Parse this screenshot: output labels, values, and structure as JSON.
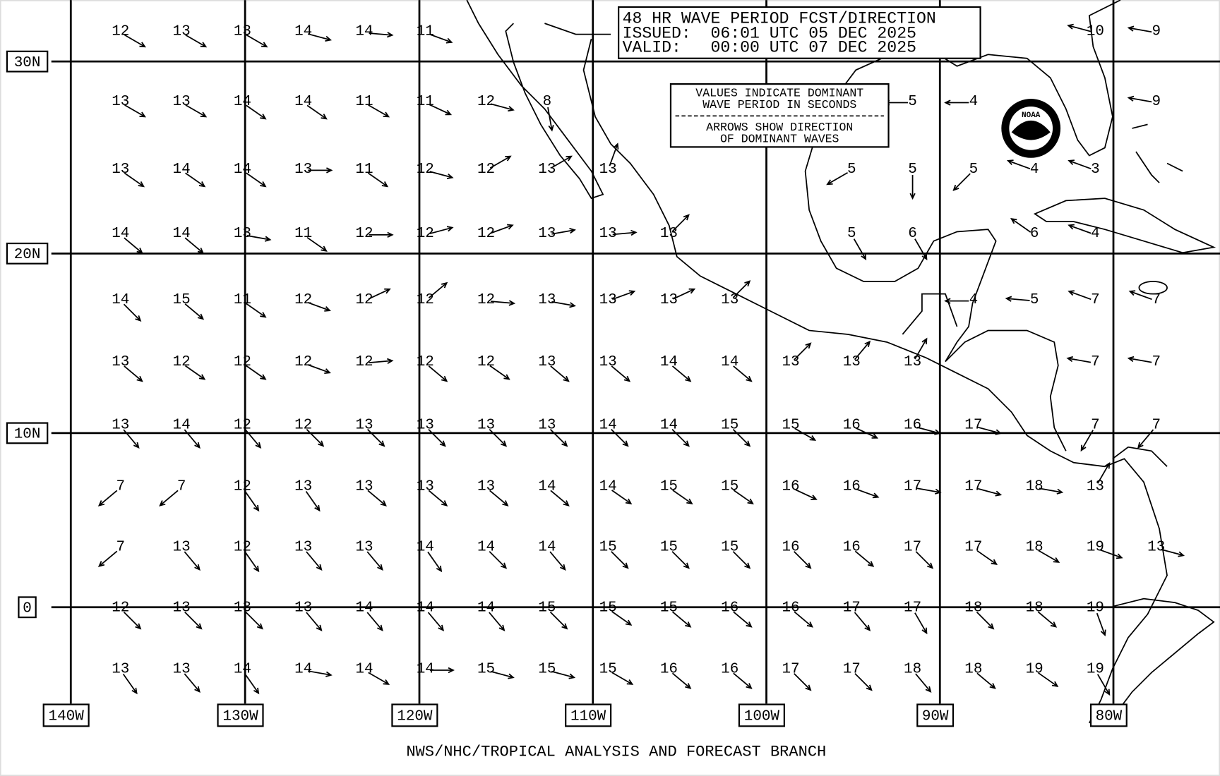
{
  "title": {
    "lines": [
      "48 HR WAVE PERIOD FCST/DIRECTION",
      "ISSUED:  06:01 UTC 05 DEC 2025",
      "VALID:   00:00 UTC 07 DEC 2025"
    ]
  },
  "legend": {
    "lines": [
      "VALUES INDICATE DOMINANT",
      "WAVE PERIOD IN SECONDS",
      "ARROWS SHOW DIRECTION",
      "OF DOMINANT WAVES"
    ]
  },
  "logo": "NOAA",
  "footer": "NWS/NHC/TROPICAL ANALYSIS AND FORECAST BRANCH",
  "lat_labels": [
    "30N",
    "20N",
    "10N",
    "0"
  ],
  "lon_labels": [
    "140W",
    "130W",
    "120W",
    "110W",
    "100W",
    "90W",
    "80W"
  ],
  "periods": [
    [
      12,
      13,
      13,
      14,
      14,
      11,
      null,
      null,
      null,
      null,
      null,
      null,
      null,
      null,
      null,
      null,
      10,
      9
    ],
    [
      13,
      13,
      14,
      14,
      11,
      11,
      12,
      8,
      null,
      null,
      null,
      null,
      null,
      5,
      4,
      null,
      null,
      9
    ],
    [
      13,
      14,
      14,
      13,
      11,
      12,
      12,
      13,
      13,
      null,
      null,
      null,
      5,
      5,
      5,
      4,
      3,
      null
    ],
    [
      14,
      14,
      13,
      11,
      12,
      12,
      12,
      13,
      13,
      13,
      null,
      null,
      5,
      6,
      null,
      6,
      4,
      null
    ],
    [
      14,
      15,
      11,
      12,
      12,
      12,
      12,
      13,
      13,
      13,
      13,
      null,
      null,
      null,
      4,
      5,
      7,
      7
    ],
    [
      13,
      12,
      12,
      12,
      12,
      12,
      12,
      13,
      13,
      14,
      14,
      13,
      13,
      13,
      null,
      null,
      7,
      7
    ],
    [
      13,
      14,
      12,
      12,
      13,
      13,
      13,
      13,
      14,
      14,
      15,
      15,
      16,
      16,
      17,
      null,
      7,
      7
    ],
    [
      7,
      7,
      12,
      13,
      13,
      13,
      13,
      14,
      14,
      15,
      15,
      16,
      16,
      17,
      17,
      18,
      13,
      null
    ],
    [
      7,
      13,
      12,
      13,
      13,
      14,
      14,
      14,
      15,
      15,
      15,
      16,
      16,
      17,
      17,
      18,
      19,
      13
    ],
    [
      12,
      13,
      13,
      13,
      14,
      14,
      14,
      15,
      15,
      15,
      16,
      16,
      17,
      17,
      18,
      18,
      19,
      null
    ],
    [
      13,
      13,
      14,
      14,
      14,
      14,
      15,
      15,
      15,
      16,
      16,
      17,
      17,
      18,
      18,
      19,
      19,
      null
    ]
  ],
  "directions": [
    [
      30,
      30,
      30,
      15,
      5,
      20,
      null,
      null,
      null,
      null,
      null,
      null,
      null,
      null,
      null,
      null,
      195,
      190
    ],
    [
      30,
      30,
      35,
      35,
      30,
      25,
      15,
      80,
      null,
      null,
      null,
      null,
      null,
      180,
      180,
      null,
      null,
      190
    ],
    [
      35,
      35,
      35,
      0,
      35,
      15,
      -30,
      -30,
      -70,
      null,
      null,
      null,
      150,
      90,
      135,
      200,
      200,
      null
    ],
    [
      40,
      40,
      10,
      35,
      0,
      -15,
      -20,
      -10,
      -5,
      -45,
      null,
      null,
      60,
      60,
      null,
      215,
      200,
      null
    ],
    [
      45,
      40,
      35,
      20,
      -25,
      -40,
      5,
      10,
      -20,
      -25,
      -45,
      null,
      null,
      null,
      180,
      185,
      200,
      200
    ],
    [
      40,
      35,
      35,
      20,
      -5,
      40,
      35,
      40,
      40,
      40,
      40,
      -45,
      -50,
      -60,
      null,
      null,
      190,
      190
    ],
    [
      50,
      50,
      50,
      45,
      45,
      45,
      45,
      45,
      45,
      45,
      45,
      30,
      25,
      15,
      15,
      null,
      120,
      130
    ],
    [
      140,
      140,
      55,
      55,
      40,
      40,
      40,
      40,
      35,
      35,
      35,
      25,
      20,
      10,
      15,
      10,
      -60,
      null
    ],
    [
      140,
      50,
      55,
      50,
      50,
      55,
      45,
      50,
      45,
      45,
      45,
      45,
      40,
      45,
      35,
      30,
      20,
      15
    ],
    [
      45,
      45,
      45,
      50,
      50,
      50,
      50,
      45,
      35,
      40,
      40,
      40,
      50,
      60,
      45,
      40,
      70,
      null
    ],
    [
      55,
      50,
      55,
      10,
      30,
      0,
      15,
      15,
      30,
      40,
      40,
      45,
      45,
      50,
      40,
      35,
      60,
      null
    ]
  ]
}
